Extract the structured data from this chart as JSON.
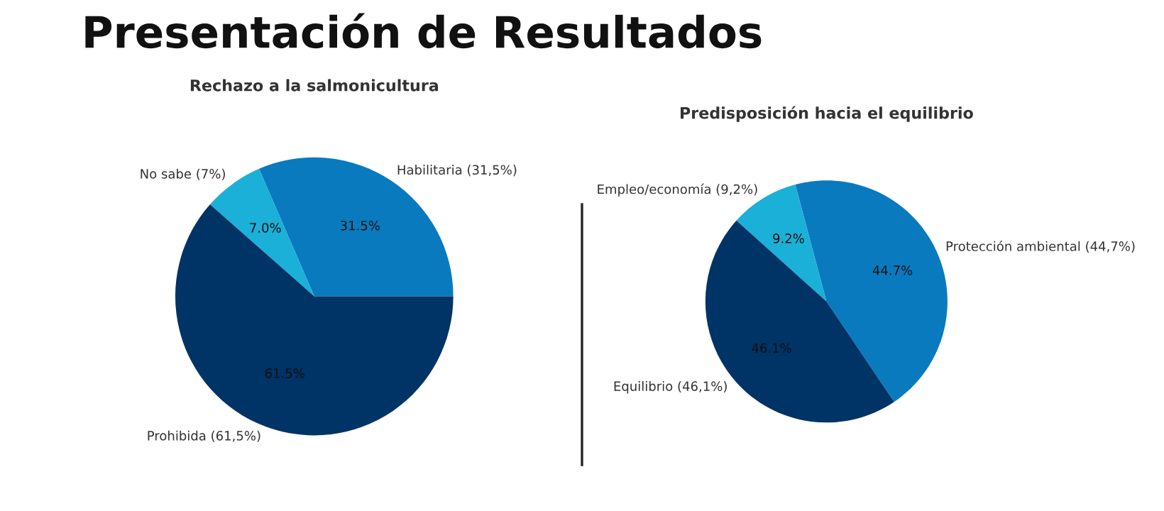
{
  "chart_data": [
    {
      "type": "pie",
      "title": "Rechazo a la salmonicultura",
      "annotations": [
        "Presentación de Resultados"
      ],
      "categories": [
        "Habilitaria (31,5%)",
        "No sabe (7%)",
        "Prohibida (61,5%)"
      ],
      "values": [
        31.5,
        7.0,
        61.5
      ],
      "value_labels": [
        "31.5%",
        "7.0%",
        "61.5%"
      ],
      "colors": [
        "#0a7abf",
        "#1ab0d8",
        "#003366"
      ]
    },
    {
      "type": "pie",
      "title": "Predisposición hacia el equilibrio",
      "categories": [
        "Protección ambiental (44,7%)",
        "Empleo/economía (9,2%)",
        "Equilibrio (46,1%)"
      ],
      "values": [
        44.7,
        9.2,
        46.1
      ],
      "value_labels": [
        "44.7%",
        "9.2%",
        "46.1%"
      ],
      "colors": [
        "#0a7abf",
        "#1ab0d8",
        "#003366"
      ]
    }
  ]
}
